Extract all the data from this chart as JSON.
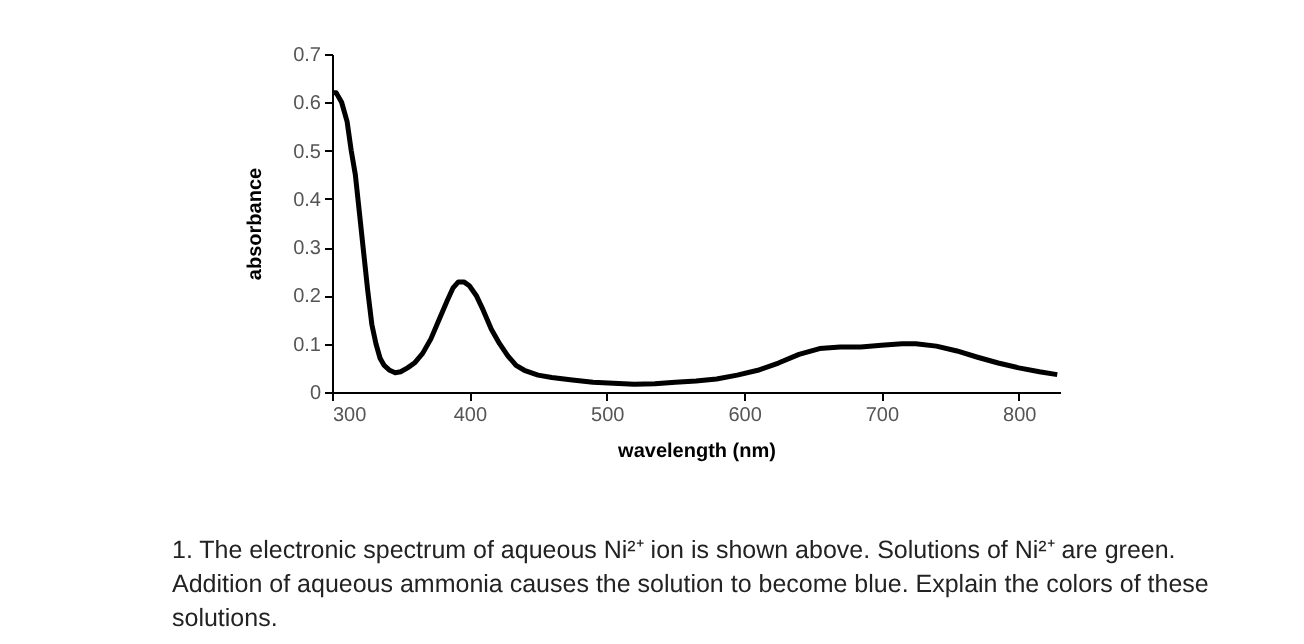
{
  "chart_data": {
    "type": "line",
    "xlabel": "wavelength (nm)",
    "ylabel": "absorbance",
    "series": [
      {
        "color": "#000000",
        "x": [
          300,
          303,
          307,
          311,
          314,
          317,
          320,
          323,
          326,
          329,
          332,
          335,
          338,
          342,
          346,
          350,
          355,
          360,
          366,
          372,
          378,
          384,
          388,
          392,
          396,
          400,
          405,
          410,
          416,
          422,
          428,
          434,
          440,
          450,
          460,
          475,
          490,
          505,
          520,
          535,
          550,
          565,
          580,
          595,
          610,
          625,
          640,
          655,
          670,
          685,
          700,
          715,
          725,
          740,
          755,
          770,
          785,
          800,
          815,
          828
        ],
        "values": [
          0.62,
          0.62,
          0.6,
          0.56,
          0.5,
          0.45,
          0.37,
          0.29,
          0.21,
          0.14,
          0.1,
          0.07,
          0.055,
          0.045,
          0.04,
          0.042,
          0.05,
          0.06,
          0.08,
          0.11,
          0.15,
          0.19,
          0.215,
          0.228,
          0.228,
          0.22,
          0.2,
          0.17,
          0.13,
          0.1,
          0.075,
          0.055,
          0.045,
          0.035,
          0.03,
          0.025,
          0.02,
          0.018,
          0.016,
          0.017,
          0.02,
          0.023,
          0.027,
          0.035,
          0.045,
          0.06,
          0.078,
          0.09,
          0.093,
          0.093,
          0.097,
          0.1,
          0.1,
          0.095,
          0.085,
          0.072,
          0.06,
          0.05,
          0.042,
          0.036
        ]
      }
    ],
    "xlim": [
      300,
      830
    ],
    "xticks": [
      300,
      400,
      500,
      600,
      700,
      800
    ],
    "ylim": [
      0,
      0.7
    ],
    "yticks": [
      0,
      0.1,
      0.2,
      0.3,
      0.4,
      0.5,
      0.6,
      0.7
    ],
    "grid": false,
    "legend": false,
    "marker": "none",
    "line_style": "solid",
    "annotations": [
      "1. The electronic spectrum of aqueous Ni²⁺ ion is shown above.  Solutions of Ni²⁺ are green. Addition of aqueous ammonia causes the solution to become blue.  Explain the colors of these solutions."
    ]
  }
}
